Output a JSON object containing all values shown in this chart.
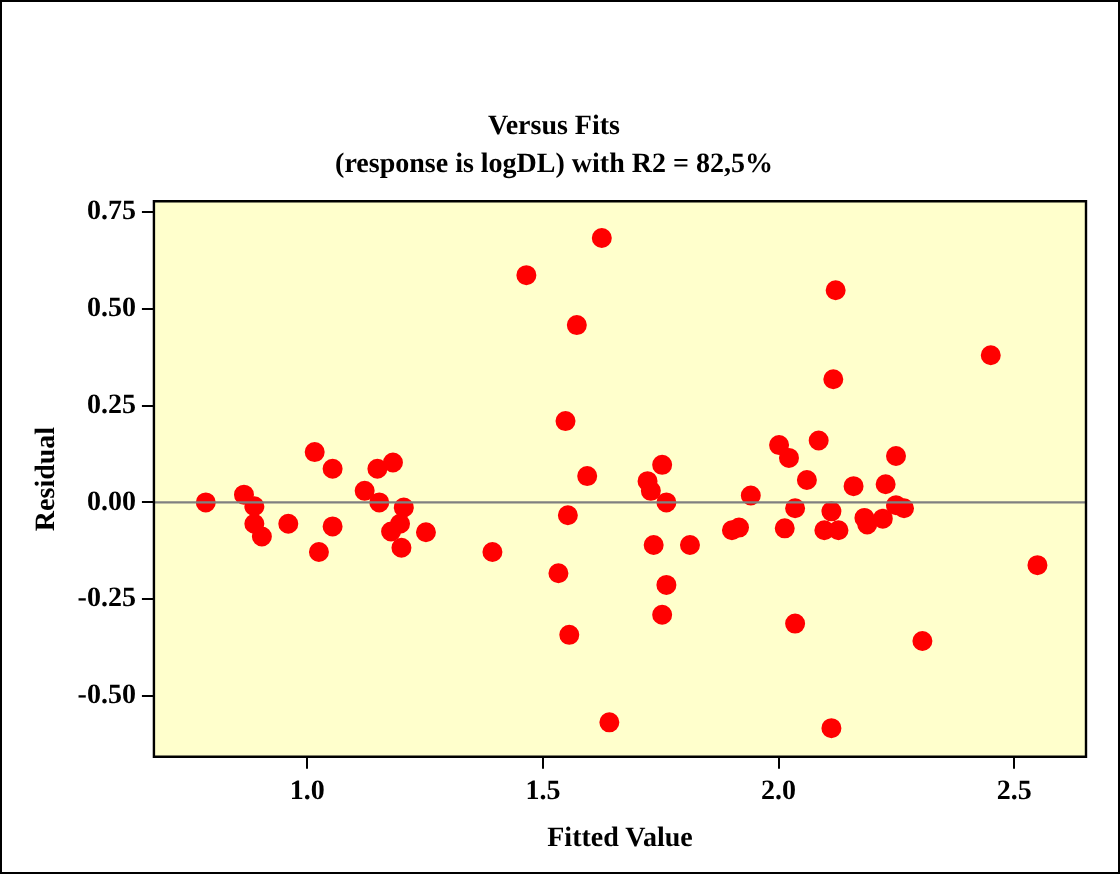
{
  "chart_data": {
    "type": "scatter",
    "title": "Versus Fits",
    "subtitle": "(response is logDL) with R2 = 82,5%",
    "xlabel": "Fitted Value",
    "ylabel": "Residual",
    "x": [
      0.785,
      0.866,
      0.888,
      0.888,
      0.904,
      0.96,
      1.016,
      1.025,
      1.054,
      1.054,
      1.122,
      1.149,
      1.153,
      1.182,
      1.178,
      1.197,
      1.205,
      1.2,
      1.252,
      1.393,
      1.465,
      1.548,
      1.533,
      1.553,
      1.556,
      1.625,
      1.572,
      1.594,
      1.641,
      1.722,
      1.729,
      1.753,
      1.762,
      1.735,
      1.812,
      1.762,
      1.753,
      1.901,
      1.916,
      1.941,
      2.001,
      2.022,
      2.013,
      2.035,
      2.035,
      2.06,
      2.085,
      2.112,
      2.097,
      2.127,
      2.121,
      2.116,
      2.112,
      2.159,
      2.182,
      2.188,
      2.221,
      2.227,
      2.249,
      2.249,
      2.266,
      2.305,
      2.45,
      2.549
    ],
    "series": [
      {
        "color": "#ff0000",
        "values": [
          0.0,
          0.02,
          -0.01,
          -0.055,
          -0.088,
          -0.055,
          0.13,
          -0.128,
          0.087,
          -0.062,
          0.03,
          0.087,
          0.0,
          0.103,
          -0.075,
          -0.055,
          -0.013,
          -0.117,
          -0.077,
          -0.128,
          0.587,
          0.21,
          -0.183,
          -0.033,
          -0.342,
          0.683,
          0.458,
          0.068,
          -0.568,
          0.055,
          0.03,
          0.097,
          0.0,
          -0.11,
          -0.11,
          -0.213,
          -0.29,
          -0.072,
          -0.065,
          0.018,
          0.148,
          0.115,
          -0.067,
          -0.015,
          -0.313,
          0.058,
          0.16,
          -0.023,
          -0.072,
          -0.072,
          0.548,
          0.318,
          -0.583,
          0.042,
          -0.04,
          -0.057,
          -0.042,
          0.047,
          0.12,
          -0.007,
          -0.015,
          -0.358,
          0.38,
          -0.162
        ]
      }
    ],
    "xlim": [
      0.675,
      2.652
    ],
    "xticks": [
      {
        "value": 1,
        "label": "1.0"
      },
      {
        "value": 1.5,
        "label": "1.5"
      },
      {
        "value": 2,
        "label": "2.0"
      },
      {
        "value": 2.5,
        "label": "2.5"
      }
    ],
    "ylim": [
      -0.657,
      0.778
    ],
    "yticks": [
      {
        "value": -0.5,
        "label": "-0.50"
      },
      {
        "value": -0.25,
        "label": "-0.25"
      },
      {
        "value": 0,
        "label": "0.00"
      },
      {
        "value": 0.25,
        "label": "0.25"
      },
      {
        "value": 0.5,
        "label": "0.50"
      },
      {
        "value": 0.75,
        "label": "0.75"
      }
    ],
    "ref_lines": [
      {
        "axis": "y",
        "value": 0,
        "color": "#808080"
      }
    ],
    "marker": "circle",
    "grid": false,
    "legend": false
  }
}
